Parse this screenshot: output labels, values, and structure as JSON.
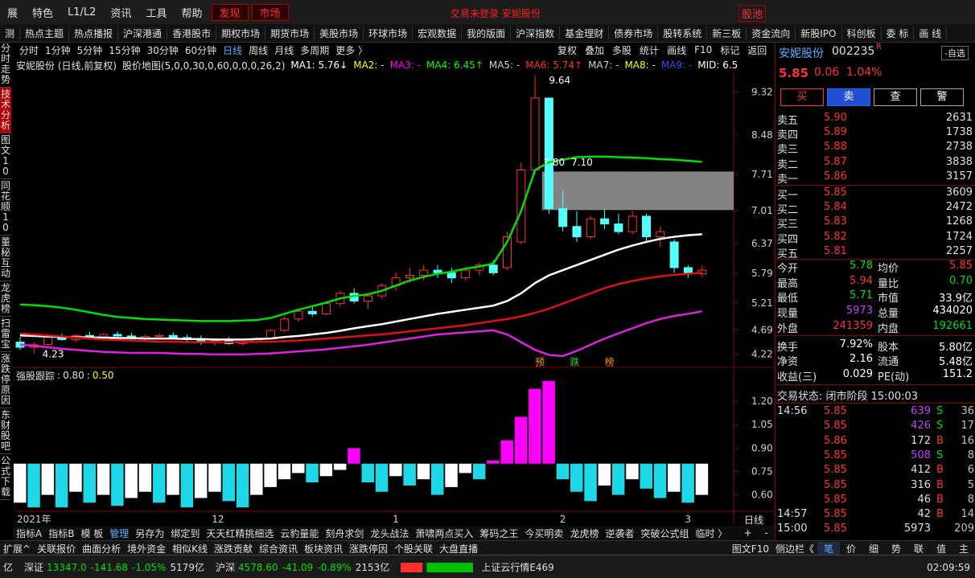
{
  "menu": [
    "展",
    "特色",
    "L1/L2",
    "资讯",
    "工具",
    "帮助",
    "发现",
    "市场"
  ],
  "status_center": "交易未登录 安妮股份",
  "pool": "股池",
  "nav": [
    "测",
    "热点主题",
    "热点播报",
    "沪深港通",
    "香港股市",
    "期权市场",
    "期货市场",
    "美股市场",
    "环球市场",
    "宏观数据",
    "我的版面",
    "沪深指数",
    "基金理财",
    "债券市场",
    "股转系统",
    "新三板",
    "资金流向",
    "新股IPO",
    "科创板",
    "委 标",
    "画 线"
  ],
  "side_tabs": [
    "分时走势",
    "技术分析",
    "图文10",
    "同花顺10",
    "董秘互动",
    "龙虎榜",
    "扫雷宝",
    "涨跌停原因",
    "东财股吧",
    "公式下载"
  ],
  "periods": [
    "分时",
    "1分钟",
    "5分钟",
    "15分钟",
    "30分钟",
    "60分钟",
    "日线",
    "周线",
    "月线",
    "多周期",
    "更多 〉"
  ],
  "tools": [
    "复权",
    "叠加",
    "多股",
    "统计",
    "画线",
    "F10",
    "标记",
    "返回"
  ],
  "chart_title": "安妮股份 (日线,前复权)",
  "overlay_name": "股价地图(5,0,0,30,0,60,0,0,0,26,2)",
  "ma_labels": [
    {
      "text": "MA1: 5.76↓",
      "color": "#ffffff"
    },
    {
      "text": "MA2: -",
      "color": "#ffff00"
    },
    {
      "text": "MA3: -",
      "color": "#ff00ff"
    },
    {
      "text": "MA4: 6.45↑",
      "color": "#00ff00"
    },
    {
      "text": "MA5: -",
      "color": "#d0d0d0"
    },
    {
      "text": "MA6: 5.74↑",
      "color": "#ff3030"
    },
    {
      "text": "MA7: -",
      "color": "#d0d0d0"
    },
    {
      "text": "MA8: -",
      "color": "#ffff00"
    },
    {
      "text": "MA9: -",
      "color": "#3050ff"
    },
    {
      "text": "MID: 6.5",
      "color": "#ffffff"
    }
  ],
  "chart_data": [
    {
      "type": "candlestick",
      "ylim": [
        3.99,
        9.7
      ],
      "yticks": [
        9.32,
        8.48,
        7.71,
        7.01,
        6.37,
        5.79,
        5.21,
        4.69,
        4.22
      ],
      "up_color": "#ff3232",
      "down_color": "#54ffff",
      "candles": [
        [
          4.45,
          4.55,
          4.3,
          4.35
        ],
        [
          4.35,
          4.45,
          4.23,
          4.4
        ],
        [
          4.4,
          4.58,
          4.38,
          4.55
        ],
        [
          4.55,
          4.62,
          4.48,
          4.5
        ],
        [
          4.5,
          4.6,
          4.45,
          4.58
        ],
        [
          4.58,
          4.65,
          4.52,
          4.55
        ],
        [
          4.55,
          4.62,
          4.48,
          4.6
        ],
        [
          4.6,
          4.66,
          4.55,
          4.57
        ],
        [
          4.57,
          4.63,
          4.5,
          4.52
        ],
        [
          4.52,
          4.6,
          4.48,
          4.56
        ],
        [
          4.56,
          4.62,
          4.5,
          4.58
        ],
        [
          4.58,
          4.64,
          4.52,
          4.54
        ],
        [
          4.54,
          4.6,
          4.45,
          4.5
        ],
        [
          4.5,
          4.58,
          4.4,
          4.45
        ],
        [
          4.45,
          4.52,
          4.38,
          4.48
        ],
        [
          4.48,
          4.55,
          4.4,
          4.42
        ],
        [
          4.42,
          4.5,
          4.38,
          4.46
        ],
        [
          4.46,
          4.55,
          4.42,
          4.52
        ],
        [
          4.52,
          4.7,
          4.5,
          4.68
        ],
        [
          4.68,
          4.95,
          4.65,
          4.9
        ],
        [
          4.9,
          5.1,
          4.85,
          5.05
        ],
        [
          5.05,
          5.15,
          4.95,
          5.0
        ],
        [
          5.0,
          5.25,
          4.98,
          5.2
        ],
        [
          5.2,
          5.45,
          5.15,
          5.4
        ],
        [
          5.4,
          5.5,
          5.2,
          5.25
        ],
        [
          5.25,
          5.4,
          5.1,
          5.35
        ],
        [
          5.35,
          5.6,
          5.3,
          5.55
        ],
        [
          5.55,
          5.8,
          5.45,
          5.7
        ],
        [
          5.7,
          5.9,
          5.6,
          5.75
        ],
        [
          5.75,
          5.95,
          5.65,
          5.85
        ],
        [
          5.85,
          5.95,
          5.7,
          5.8
        ],
        [
          5.8,
          5.9,
          5.6,
          5.7
        ],
        [
          5.7,
          5.9,
          5.65,
          5.85
        ],
        [
          5.85,
          6.0,
          5.75,
          5.95
        ],
        [
          5.95,
          6.05,
          5.75,
          5.8
        ],
        [
          5.9,
          6.6,
          5.85,
          6.5
        ],
        [
          6.4,
          7.95,
          6.35,
          7.8
        ],
        [
          7.8,
          9.64,
          7.7,
          9.2
        ],
        [
          9.2,
          9.2,
          6.95,
          7.05
        ],
        [
          7.05,
          7.4,
          6.6,
          6.7
        ],
        [
          6.7,
          7.0,
          6.4,
          6.5
        ],
        [
          6.5,
          6.9,
          6.45,
          6.85
        ],
        [
          6.85,
          7.05,
          6.65,
          6.75
        ],
        [
          6.75,
          6.95,
          6.55,
          6.6
        ],
        [
          6.6,
          7.0,
          6.55,
          6.9
        ],
        [
          6.9,
          6.95,
          6.4,
          6.5
        ],
        [
          6.5,
          6.7,
          6.3,
          6.6
        ],
        [
          6.4,
          6.45,
          5.8,
          5.9
        ],
        [
          5.9,
          5.95,
          5.7,
          5.8
        ],
        [
          5.78,
          5.94,
          5.71,
          5.85
        ]
      ],
      "series": [
        {
          "color": "#00e000",
          "width": 2.5,
          "values": [
            5.18,
            5.17,
            5.15,
            5.12,
            5.08,
            5.03,
            4.98,
            4.94,
            4.92,
            4.9,
            4.89,
            4.88,
            4.87,
            4.86,
            4.86,
            4.86,
            4.87,
            4.88,
            4.92,
            5.0,
            5.08,
            5.15,
            5.22,
            5.3,
            5.35,
            5.38,
            5.45,
            5.55,
            5.65,
            5.72,
            5.78,
            5.82,
            5.88,
            5.92,
            5.98,
            6.4,
            7.0,
            7.8,
            7.95,
            8.0,
            8.05,
            8.06,
            8.06,
            8.05,
            8.04,
            8.03,
            8.01,
            8.0,
            7.98,
            7.96
          ]
        },
        {
          "color": "#ffffff",
          "width": 2.5,
          "values": [
            4.58,
            4.57,
            4.56,
            4.55,
            4.55,
            4.54,
            4.54,
            4.53,
            4.53,
            4.52,
            4.52,
            4.52,
            4.51,
            4.51,
            4.5,
            4.5,
            4.5,
            4.51,
            4.52,
            4.55,
            4.57,
            4.6,
            4.63,
            4.67,
            4.72,
            4.76,
            4.8,
            4.85,
            4.9,
            4.95,
            5.0,
            5.04,
            5.08,
            5.12,
            5.16,
            5.25,
            5.4,
            5.6,
            5.75,
            5.85,
            5.95,
            6.05,
            6.15,
            6.25,
            6.33,
            6.4,
            6.46,
            6.5,
            6.53,
            6.55
          ]
        },
        {
          "color": "#e01010",
          "width": 2.5,
          "values": [
            4.62,
            4.6,
            4.58,
            4.56,
            4.54,
            4.52,
            4.5,
            4.49,
            4.48,
            4.47,
            4.46,
            4.46,
            4.45,
            4.45,
            4.45,
            4.45,
            4.45,
            4.46,
            4.46,
            4.47,
            4.48,
            4.5,
            4.52,
            4.54,
            4.56,
            4.58,
            4.6,
            4.63,
            4.66,
            4.69,
            4.72,
            4.75,
            4.78,
            4.82,
            4.86,
            4.9,
            4.95,
            5.02,
            5.1,
            5.2,
            5.3,
            5.4,
            5.5,
            5.58,
            5.64,
            5.69,
            5.73,
            5.76,
            5.78,
            5.8
          ]
        },
        {
          "color": "#e020e0",
          "width": 2.5,
          "values": [
            4.4,
            4.38,
            4.35,
            4.32,
            4.3,
            4.28,
            4.26,
            4.25,
            4.24,
            4.24,
            4.24,
            4.23,
            4.22,
            4.22,
            4.21,
            4.21,
            4.21,
            4.22,
            4.23,
            4.25,
            4.27,
            4.29,
            4.31,
            4.34,
            4.37,
            4.4,
            4.44,
            4.48,
            4.52,
            4.56,
            4.6,
            4.62,
            4.64,
            4.66,
            4.68,
            4.6,
            4.45,
            4.3,
            4.2,
            4.18,
            4.28,
            4.4,
            4.52,
            4.62,
            4.72,
            4.82,
            4.9,
            4.96,
            5.0,
            5.05
          ]
        }
      ],
      "zone": {
        "x": 37.5,
        "low": 7.02,
        "high": 7.77
      },
      "annotations": [
        {
          "text": "9.64",
          "x": 38,
          "y": 9.54,
          "color": "#ffffff"
        },
        {
          "text": "7.80",
          "x": 37.6,
          "y": 7.95,
          "color": "#ffffff"
        },
        {
          "text": "7.10",
          "x": 39.6,
          "y": 7.95,
          "color": "#ffffff"
        },
        {
          "text": "4.23",
          "x": 1.6,
          "y": 4.22,
          "color": "#ffffff"
        },
        {
          "text": "预",
          "x": 37,
          "y": 4.06,
          "color": "#ff8c00"
        },
        {
          "text": "跌",
          "x": 39.5,
          "y": 4.06,
          "color": "#00e000"
        },
        {
          "text": "榜",
          "x": 42,
          "y": 4.06,
          "color": "#ff8c00"
        }
      ],
      "xticks": [
        {
          "value": 0,
          "label": "2021年"
        },
        {
          "value": 14,
          "label": "12"
        },
        {
          "value": 27,
          "label": "1"
        },
        {
          "value": 39,
          "label": "2"
        },
        {
          "value": 48,
          "label": "3"
        }
      ],
      "period_label": "日线"
    },
    {
      "type": "bar",
      "name": "强股跟踪",
      "legend_labels": [
        "0.80",
        "0.50"
      ],
      "baseline": 0.8,
      "ylim": [
        0.5,
        1.35
      ],
      "yticks": [
        {
          "value": 1.2,
          "label": "1.20"
        },
        {
          "value": 1.05,
          "label": "1.05"
        },
        {
          "value": 0.9,
          "label": "0.90"
        },
        {
          "value": 0.75,
          "label": "0.75"
        },
        {
          "value": 0.6,
          "label": "0.60"
        }
      ],
      "colors": {
        "above": "#ff00ff",
        "fall": "#1ed8e8",
        "rise": "#ffffff"
      },
      "values": [
        0.55,
        0.52,
        0.6,
        0.52,
        0.62,
        0.55,
        0.6,
        0.53,
        0.58,
        0.62,
        0.55,
        0.6,
        0.52,
        0.58,
        0.62,
        0.56,
        0.52,
        0.6,
        0.65,
        0.7,
        0.74,
        0.68,
        0.72,
        0.76,
        0.9,
        0.68,
        0.62,
        0.72,
        0.66,
        0.7,
        0.6,
        0.65,
        0.74,
        0.7,
        0.82,
        0.95,
        1.1,
        1.28,
        1.33,
        0.7,
        0.62,
        0.56,
        0.66,
        0.6,
        0.7,
        0.64,
        0.58,
        0.62,
        0.55,
        0.6
      ]
    }
  ],
  "quote": {
    "name": "安妮股份",
    "code": "002235",
    "flag": "R",
    "watch": "-自选",
    "price": "5.85",
    "change": "0.06",
    "pct": "1.04%",
    "buttons": [
      "买",
      "卖",
      "查",
      "警"
    ],
    "asks": [
      [
        "卖五",
        "5.90",
        "2631"
      ],
      [
        "卖四",
        "5.89",
        "1738"
      ],
      [
        "卖三",
        "5.88",
        "2738"
      ],
      [
        "卖二",
        "5.87",
        "3838"
      ],
      [
        "卖一",
        "5.86",
        "3157"
      ]
    ],
    "bids": [
      [
        "买一",
        "5.85",
        "3609"
      ],
      [
        "买二",
        "5.84",
        "2472"
      ],
      [
        "买三",
        "5.83",
        "1268"
      ],
      [
        "买四",
        "5.82",
        "1724"
      ],
      [
        "买五",
        "5.81",
        "2257"
      ]
    ],
    "stats": [
      [
        [
          "今开",
          "5.78",
          "#00e000"
        ],
        [
          "均价",
          "5.85",
          "#ff3232"
        ]
      ],
      [
        [
          "最高",
          "5.94",
          "#ff3232"
        ],
        [
          "量比",
          "0.70",
          "#00e000"
        ]
      ],
      [
        [
          "最低",
          "5.71",
          "#00e000"
        ],
        [
          "市值",
          "33.9亿",
          "#ffffff"
        ]
      ],
      [
        [
          "现量",
          "5973",
          "#c040ff"
        ],
        [
          "总量",
          "434020",
          "#ffffff"
        ]
      ],
      [
        [
          "外盘",
          "241359",
          "#ff3232"
        ],
        [
          "内盘",
          "192661",
          "#00e000"
        ]
      ],
      [
        [
          "换手",
          "7.92%",
          "#ffffff"
        ],
        [
          "股本",
          "5.80亿",
          "#ffffff"
        ]
      ],
      [
        [
          "净资",
          "2.16",
          "#ffffff"
        ],
        [
          "流通",
          "5.48亿",
          "#ffffff"
        ]
      ],
      [
        [
          "收益(三)",
          "0.029",
          "#ffffff"
        ],
        [
          "PE(动)",
          "151.2",
          "#ffffff"
        ]
      ]
    ],
    "trade_state": "交易状态: 闭市阶段 15:00:03",
    "ticks": [
      [
        "14:56",
        "5.85",
        "639",
        "S",
        "36"
      ],
      [
        null,
        "5.85",
        "426",
        "S",
        "17"
      ],
      [
        null,
        "5.86",
        "172",
        "B",
        "16"
      ],
      [
        null,
        "5.85",
        "508",
        "S",
        "8"
      ],
      [
        null,
        "5.85",
        "412",
        "B",
        "6"
      ],
      [
        null,
        "5.85",
        "316",
        "B",
        "5"
      ],
      [
        null,
        "5.85",
        "46",
        "B",
        "8"
      ],
      [
        "14:57",
        "5.85",
        "42",
        "B",
        "14"
      ],
      [
        "15:00",
        "5.85",
        "5973",
        null,
        "209"
      ]
    ]
  },
  "toolbar": [
    "指标A",
    "指标B",
    "模 板",
    "管理",
    "另存为",
    "绑定到",
    "天天红精挑细选",
    "云豹量能",
    "刻舟求剑",
    "龙头战法",
    "萧啸两点买入",
    "筹码之王",
    "今买明卖",
    "龙虎榜",
    "逆袭者",
    "突破公式组",
    "临时 〉"
  ],
  "toolbar_right": [
    "+",
    "-"
  ],
  "extras": [
    "扩展^",
    "关联报价",
    "曲面分析",
    "境外资金",
    "相似K线",
    "涨跌贡献",
    "综合资讯",
    "板块资讯",
    "涨跌停因",
    "个股关联",
    "大盘直播"
  ],
  "extras_right": [
    "图文F10",
    "侧边栏《"
  ],
  "detail_tabs": [
    "笔",
    "价",
    "细",
    "势",
    "联",
    "值",
    "主"
  ],
  "statusbar": {
    "lead": "亿",
    "indices": [
      {
        "name": "深证",
        "value": "13347.0",
        "change": "-141.68",
        "pct": "-1.05%",
        "amount": "5179亿"
      },
      {
        "name": "沪深",
        "value": "4578.60",
        "change": "-41.09",
        "pct": "-0.89%",
        "amount": "2153亿"
      }
    ],
    "server": "上证云行情E469",
    "clock": "02:09:59"
  }
}
